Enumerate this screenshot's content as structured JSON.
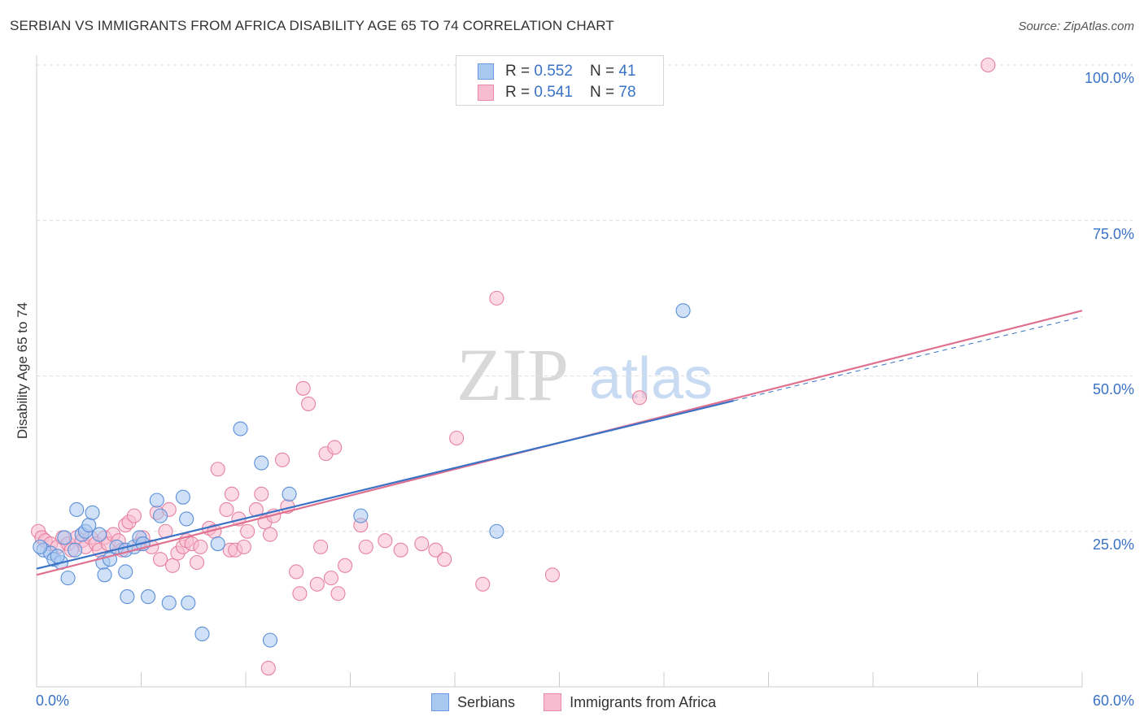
{
  "header": {
    "title": "SERBIAN VS IMMIGRANTS FROM AFRICA DISABILITY AGE 65 TO 74 CORRELATION CHART",
    "source": "Source: ZipAtlas.com"
  },
  "watermark": {
    "zip": "ZIP",
    "atlas": "atlas"
  },
  "legend": {
    "rows": [
      {
        "r_label": "R = ",
        "r_value": "0.552",
        "n_label": "N = ",
        "n_value": "41",
        "color": "#a9c8f0",
        "stroke": "#6a9be0"
      },
      {
        "r_label": "R = ",
        "r_value": "0.541",
        "n_label": "N = ",
        "n_value": "78",
        "color": "#f7bcd0",
        "stroke": "#e98aab"
      }
    ]
  },
  "colors": {
    "serbians_fill": "#a9c8f0",
    "serbians_stroke": "#5b8fd8",
    "serbians_line": "#3a72c6",
    "africa_fill": "#f7bcd0",
    "africa_stroke": "#e6829f",
    "africa_line": "#e0708f",
    "grid": "#dddddd",
    "axis_text": "#3a72c6"
  },
  "chart_data": {
    "type": "scatter",
    "title": "SERBIAN VS IMMIGRANTS FROM AFRICA DISABILITY AGE 65 TO 74 CORRELATION CHART",
    "xlabel": "",
    "ylabel": "Disability Age 65 to 74",
    "xlim": [
      0,
      60
    ],
    "ylim": [
      0,
      105
    ],
    "x_tick_labels": [
      "0.0%",
      "60.0%"
    ],
    "y_ticks": [
      25,
      50,
      75,
      100
    ],
    "y_tick_labels": [
      "25.0%",
      "50.0%",
      "75.0%",
      "100.0%"
    ],
    "grid": true,
    "legend_position": "top-center",
    "series": [
      {
        "name": "Serbians",
        "points": [
          [
            0.4,
            22.0
          ],
          [
            0.8,
            21.5
          ],
          [
            1.0,
            20.5
          ],
          [
            1.4,
            20.0
          ],
          [
            1.6,
            24.0
          ],
          [
            1.8,
            17.5
          ],
          [
            2.2,
            22.0
          ],
          [
            2.3,
            28.5
          ],
          [
            2.6,
            24.5
          ],
          [
            2.8,
            25.0
          ],
          [
            3.0,
            26.0
          ],
          [
            3.2,
            28.0
          ],
          [
            3.6,
            24.5
          ],
          [
            3.8,
            20.0
          ],
          [
            3.9,
            18.0
          ],
          [
            4.2,
            20.5
          ],
          [
            4.6,
            22.5
          ],
          [
            5.1,
            22.0
          ],
          [
            5.1,
            18.5
          ],
          [
            5.2,
            14.5
          ],
          [
            5.6,
            22.5
          ],
          [
            5.9,
            24.0
          ],
          [
            6.1,
            23.0
          ],
          [
            6.4,
            14.5
          ],
          [
            6.9,
            30.0
          ],
          [
            7.1,
            27.5
          ],
          [
            7.6,
            13.5
          ],
          [
            8.4,
            30.5
          ],
          [
            8.6,
            27.0
          ],
          [
            8.7,
            13.5
          ],
          [
            9.5,
            8.5
          ],
          [
            10.4,
            23.0
          ],
          [
            11.7,
            41.5
          ],
          [
            12.9,
            36.0
          ],
          [
            13.4,
            7.5
          ],
          [
            14.5,
            31.0
          ],
          [
            18.6,
            27.5
          ],
          [
            26.4,
            25.0
          ],
          [
            37.1,
            60.5
          ],
          [
            0.2,
            22.5
          ],
          [
            1.2,
            21.0
          ]
        ],
        "trend": [
          [
            0,
            19.0
          ],
          [
            40,
            46.0
          ]
        ]
      },
      {
        "name": "Immigrants from Africa",
        "points": [
          [
            0.1,
            25.0
          ],
          [
            0.3,
            24.0
          ],
          [
            0.5,
            23.5
          ],
          [
            0.8,
            23.0
          ],
          [
            1.2,
            22.5
          ],
          [
            1.5,
            24.0
          ],
          [
            1.8,
            23.0
          ],
          [
            2.0,
            22.0
          ],
          [
            2.3,
            24.0
          ],
          [
            2.6,
            23.5
          ],
          [
            2.8,
            22.5
          ],
          [
            3.1,
            24.0
          ],
          [
            3.4,
            23.0
          ],
          [
            3.6,
            22.0
          ],
          [
            3.9,
            24.0
          ],
          [
            4.1,
            23.0
          ],
          [
            4.4,
            24.5
          ],
          [
            4.7,
            23.5
          ],
          [
            4.9,
            22.0
          ],
          [
            5.1,
            26.0
          ],
          [
            5.3,
            26.5
          ],
          [
            5.6,
            27.5
          ],
          [
            5.9,
            23.0
          ],
          [
            6.1,
            24.0
          ],
          [
            6.6,
            22.5
          ],
          [
            6.9,
            28.0
          ],
          [
            7.1,
            20.5
          ],
          [
            7.4,
            25.0
          ],
          [
            7.6,
            28.5
          ],
          [
            7.8,
            19.5
          ],
          [
            8.1,
            21.5
          ],
          [
            8.4,
            22.5
          ],
          [
            8.6,
            23.5
          ],
          [
            8.9,
            23.0
          ],
          [
            9.2,
            20.0
          ],
          [
            9.4,
            22.5
          ],
          [
            9.9,
            25.5
          ],
          [
            10.2,
            25.0
          ],
          [
            10.4,
            35.0
          ],
          [
            10.9,
            28.5
          ],
          [
            11.1,
            22.0
          ],
          [
            11.4,
            22.0
          ],
          [
            11.6,
            27.0
          ],
          [
            11.9,
            22.5
          ],
          [
            12.1,
            25.0
          ],
          [
            12.6,
            28.5
          ],
          [
            12.9,
            31.0
          ],
          [
            13.1,
            26.5
          ],
          [
            13.4,
            24.5
          ],
          [
            13.6,
            27.5
          ],
          [
            14.1,
            36.5
          ],
          [
            14.4,
            29.0
          ],
          [
            14.9,
            18.5
          ],
          [
            15.1,
            15.0
          ],
          [
            15.3,
            48.0
          ],
          [
            15.6,
            45.5
          ],
          [
            16.1,
            16.5
          ],
          [
            16.3,
            22.5
          ],
          [
            16.6,
            37.5
          ],
          [
            16.9,
            17.5
          ],
          [
            17.1,
            38.5
          ],
          [
            17.3,
            15.0
          ],
          [
            17.7,
            19.5
          ],
          [
            18.6,
            26.0
          ],
          [
            18.9,
            22.5
          ],
          [
            20.0,
            23.5
          ],
          [
            20.9,
            22.0
          ],
          [
            22.1,
            23.0
          ],
          [
            22.9,
            22.0
          ],
          [
            23.4,
            20.5
          ],
          [
            24.1,
            40.0
          ],
          [
            25.6,
            16.5
          ],
          [
            26.4,
            62.5
          ],
          [
            29.6,
            18.0
          ],
          [
            34.6,
            46.5
          ],
          [
            54.6,
            100.0
          ],
          [
            11.2,
            31.0
          ],
          [
            13.3,
            3.0
          ]
        ],
        "trend": [
          [
            0,
            18.0
          ],
          [
            60,
            60.5
          ]
        ]
      }
    ]
  },
  "bottom_legend": {
    "items": [
      "Serbians",
      "Immigrants from Africa"
    ]
  }
}
